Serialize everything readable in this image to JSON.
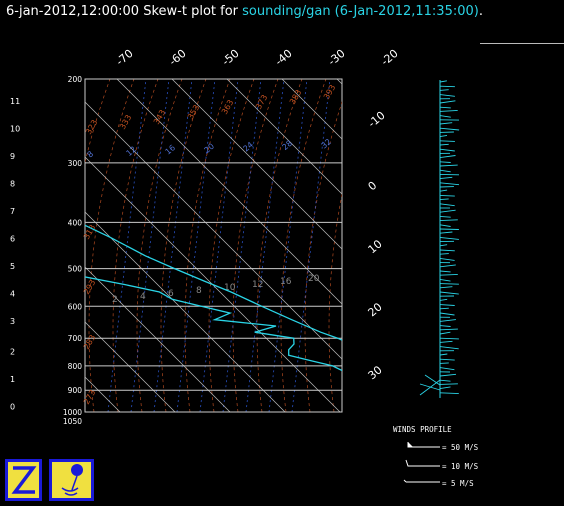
{
  "header": {
    "datetime": "6-jan-2012,12:00:00",
    "plot_prefix": "Skew-t plot for",
    "source": "sounding/gan (6-Jan-2012,11:35:00)",
    "period": "."
  },
  "chart_data": {
    "type": "line",
    "chart_kind": "skew-t log-p",
    "pressure_levels": [
      200,
      300,
      400,
      500,
      600,
      700,
      800,
      900,
      1000,
      1050
    ],
    "pressure_range": [
      200,
      1050
    ],
    "height_ticks_km": [
      "11",
      "10",
      "9",
      "8",
      "7",
      "6",
      "5",
      "4",
      "3",
      "2",
      "1",
      "0"
    ],
    "top_temp_labels": [
      "-70",
      "-60",
      "-50",
      "-40",
      "-30",
      "-20"
    ],
    "right_temp_labels": [
      "-10",
      "0",
      "10",
      "20",
      "30"
    ],
    "mixing_ratio_labels": [
      "8",
      "12",
      "16",
      "20",
      "24",
      "28",
      "32"
    ],
    "dry_adiabat_labels": [
      "273",
      "283",
      "293",
      "313",
      "323",
      "333",
      "343",
      "353",
      "363",
      "373",
      "383",
      "393"
    ],
    "mid_labels": [
      "2",
      "4",
      "6",
      "8",
      "10",
      "12",
      "16",
      "20"
    ],
    "series": [
      {
        "points": [
          [
            200,
            -56
          ],
          [
            220,
            -53
          ],
          [
            250,
            -50
          ],
          [
            280,
            -47
          ],
          [
            300,
            -44
          ],
          [
            330,
            -41
          ],
          [
            360,
            -37
          ],
          [
            400,
            -33
          ],
          [
            430,
            -30
          ],
          [
            470,
            -27
          ],
          [
            500,
            -24
          ],
          [
            530,
            -21
          ],
          [
            560,
            -18
          ],
          [
            600,
            -15
          ],
          [
            640,
            -12
          ],
          [
            680,
            -9
          ],
          [
            700,
            -7
          ],
          [
            750,
            -4
          ],
          [
            800,
            -1
          ],
          [
            850,
            3
          ],
          [
            900,
            7
          ],
          [
            950,
            11
          ],
          [
            975,
            14
          ],
          [
            1000,
            21
          ],
          [
            1008,
            26
          ]
        ]
      },
      {
        "points": [
          [
            200,
            -66
          ],
          [
            215,
            -66
          ],
          [
            235,
            -67
          ],
          [
            250,
            -63
          ],
          [
            270,
            -68
          ],
          [
            290,
            -70
          ],
          [
            310,
            -73
          ],
          [
            330,
            -70
          ],
          [
            345,
            -63
          ],
          [
            360,
            -59
          ],
          [
            370,
            -55
          ],
          [
            380,
            -50
          ],
          [
            390,
            -45
          ],
          [
            398,
            -42
          ],
          [
            408,
            -45
          ],
          [
            420,
            -52
          ],
          [
            440,
            -56
          ],
          [
            460,
            -52
          ],
          [
            480,
            -48
          ],
          [
            500,
            -45
          ],
          [
            520,
            -42
          ],
          [
            540,
            -36
          ],
          [
            560,
            -31
          ],
          [
            580,
            -30
          ],
          [
            600,
            -26
          ],
          [
            620,
            -22
          ],
          [
            640,
            -26
          ],
          [
            660,
            -16
          ],
          [
            680,
            -21
          ],
          [
            700,
            -15
          ],
          [
            720,
            -16
          ],
          [
            740,
            -18
          ],
          [
            760,
            -19
          ],
          [
            780,
            -16
          ],
          [
            800,
            -13
          ],
          [
            820,
            -12
          ],
          [
            840,
            -9
          ],
          [
            860,
            -7
          ],
          [
            880,
            -4
          ],
          [
            900,
            -5
          ],
          [
            925,
            3
          ],
          [
            950,
            8
          ],
          [
            975,
            12
          ],
          [
            1000,
            14
          ]
        ]
      }
    ],
    "wind_profile": {
      "title": "WINDS PROFILE",
      "legend": [
        "= 50 M/S",
        "= 10 M/S",
        "= 5 M/S"
      ]
    }
  },
  "logos": {
    "left": "Z-logo",
    "right": "balloon-logo"
  }
}
